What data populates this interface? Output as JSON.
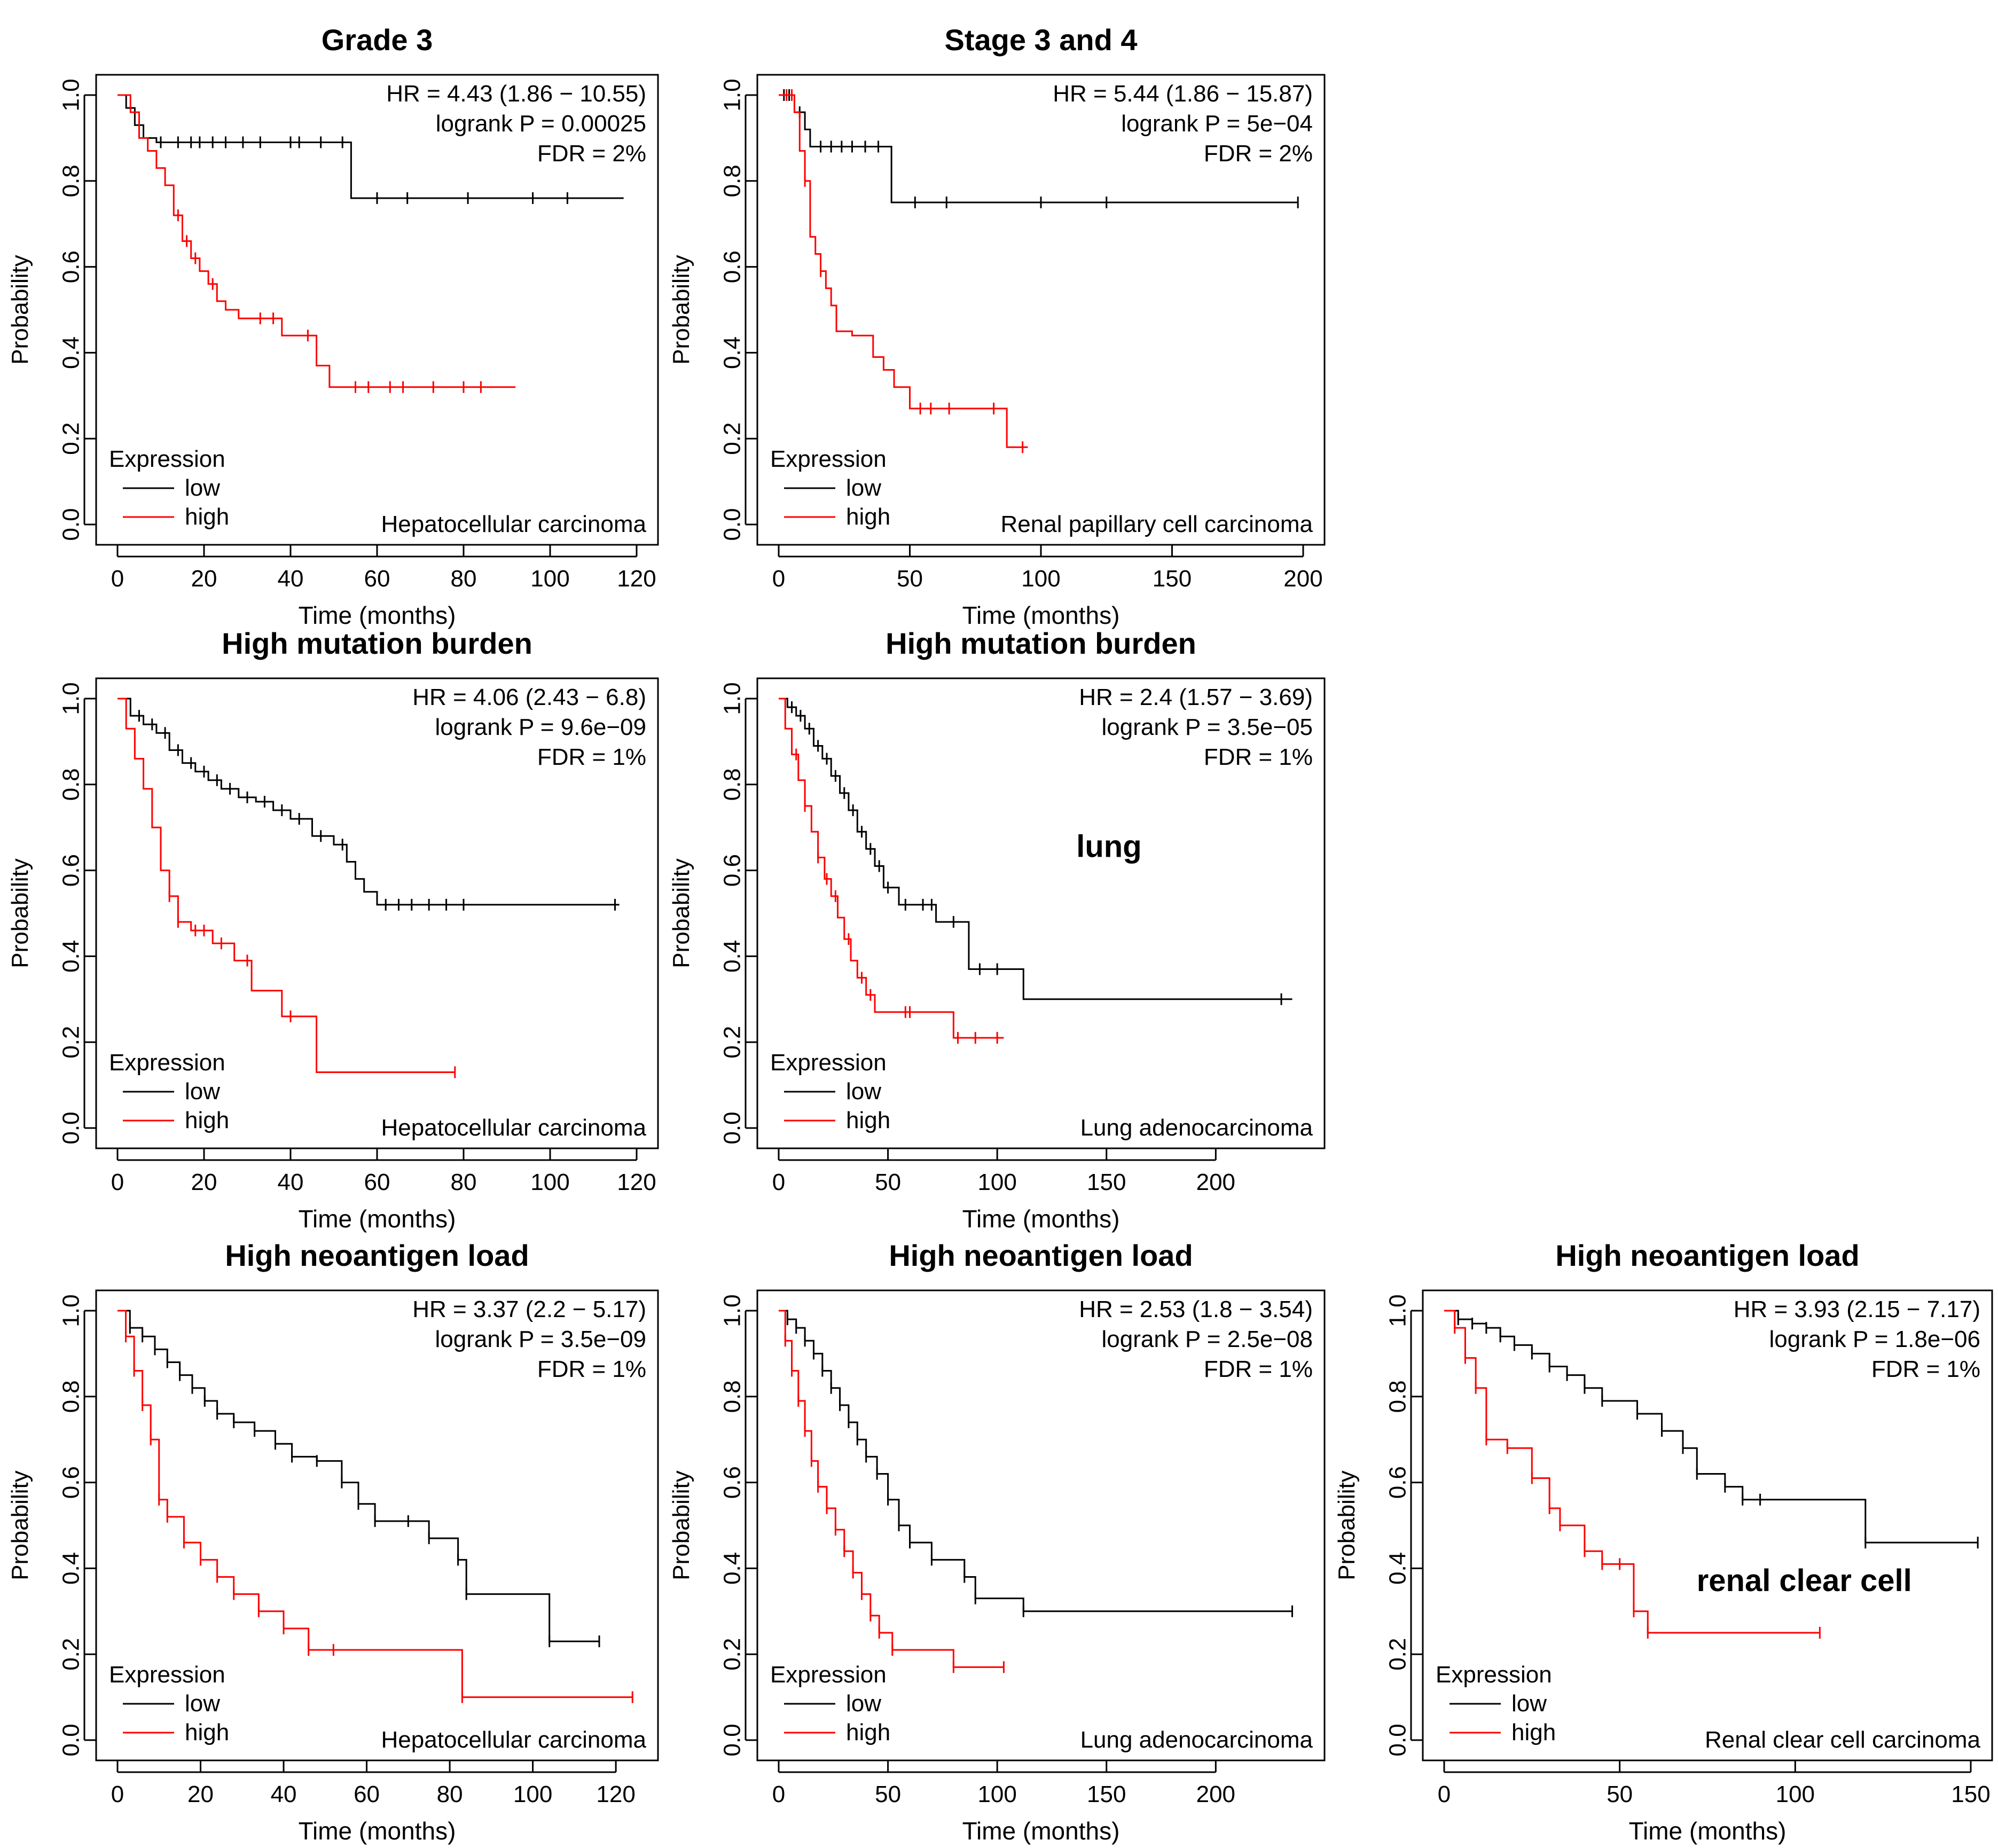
{
  "chart_data": [
    {
      "type": "line",
      "subtype": "kaplan-meier",
      "title": "Grade 3",
      "xlabel": "Time (months)",
      "ylabel": "Probability",
      "xlim": [
        0,
        120
      ],
      "ylim": [
        0,
        1
      ],
      "xticks": [
        "0",
        "20",
        "40",
        "60",
        "80",
        "100",
        "120"
      ],
      "yticks": [
        "0.0",
        "0.2",
        "0.4",
        "0.6",
        "0.8",
        "1.0"
      ],
      "stats": [
        "HR = 4.43 (1.86 − 10.55)",
        "logrank P = 0.00025",
        "FDR = 2%"
      ],
      "cancer": "Hepatocellular carcinoma",
      "annotation": "",
      "legend_title": "Expression",
      "series": [
        {
          "name": "low",
          "color": "#000000",
          "x": [
            0,
            2,
            4,
            6,
            9,
            12,
            15,
            54,
            117
          ],
          "y": [
            1.0,
            0.97,
            0.93,
            0.9,
            0.89,
            0.89,
            0.89,
            0.76,
            0.76
          ],
          "censor_x": [
            10,
            14,
            17,
            19,
            22,
            25,
            29,
            33,
            40,
            42,
            47,
            52,
            60,
            67,
            81,
            96,
            104
          ]
        },
        {
          "name": "high",
          "color": "#ff0000",
          "x": [
            0,
            3,
            5,
            7,
            9,
            11,
            13,
            15,
            17,
            19,
            21,
            23,
            25,
            28,
            31,
            38,
            46,
            49,
            51,
            92
          ],
          "y": [
            1.0,
            0.96,
            0.9,
            0.87,
            0.83,
            0.79,
            0.72,
            0.66,
            0.62,
            0.59,
            0.56,
            0.52,
            0.5,
            0.48,
            0.48,
            0.44,
            0.37,
            0.32,
            0.32,
            0.32
          ],
          "censor_x": [
            14,
            16,
            18,
            22,
            33,
            36,
            44,
            55,
            58,
            63,
            66,
            73,
            80,
            84
          ]
        }
      ]
    },
    {
      "type": "line",
      "subtype": "kaplan-meier",
      "title": "Stage 3 and 4",
      "xlabel": "Time (months)",
      "ylabel": "Probability",
      "xlim": [
        0,
        200
      ],
      "ylim": [
        0,
        1
      ],
      "xticks": [
        "0",
        "50",
        "100",
        "150",
        "200"
      ],
      "yticks": [
        "0.0",
        "0.2",
        "0.4",
        "0.6",
        "0.8",
        "1.0"
      ],
      "stats": [
        "HR = 5.44 (1.86 − 15.87)",
        "logrank P = 5e−04",
        "FDR = 2%"
      ],
      "cancer": "Renal papillary cell carcinoma",
      "annotation": "",
      "legend_title": "Expression",
      "series": [
        {
          "name": "low",
          "color": "#000000",
          "x": [
            0,
            6,
            10,
            12,
            43,
            198
          ],
          "y": [
            1.0,
            0.96,
            0.92,
            0.88,
            0.75,
            0.75
          ],
          "censor_x": [
            2,
            4,
            8,
            16,
            20,
            24,
            28,
            33,
            38,
            52,
            64,
            100,
            125,
            198
          ]
        },
        {
          "name": "high",
          "color": "#ff0000",
          "x": [
            0,
            6,
            8,
            10,
            12,
            14,
            16,
            18,
            20,
            22,
            28,
            36,
            40,
            44,
            50,
            70,
            87,
            95
          ],
          "y": [
            1.0,
            0.96,
            0.87,
            0.8,
            0.67,
            0.63,
            0.59,
            0.55,
            0.51,
            0.45,
            0.44,
            0.39,
            0.36,
            0.32,
            0.27,
            0.27,
            0.18,
            0.18
          ],
          "censor_x": [
            3,
            5,
            10,
            16,
            54,
            58,
            65,
            82,
            93
          ]
        }
      ]
    },
    {
      "type": "line",
      "subtype": "kaplan-meier",
      "title": "High mutation burden",
      "xlabel": "Time (months)",
      "ylabel": "Probability",
      "xlim": [
        0,
        120
      ],
      "ylim": [
        0,
        1
      ],
      "xticks": [
        "0",
        "20",
        "40",
        "60",
        "80",
        "100",
        "120"
      ],
      "yticks": [
        "0.0",
        "0.2",
        "0.4",
        "0.6",
        "0.8",
        "1.0"
      ],
      "stats": [
        "HR = 4.06 (2.43 − 6.8)",
        "logrank P = 9.6e−09",
        "FDR = 1%"
      ],
      "cancer": "Hepatocellular carcinoma",
      "annotation": "",
      "legend_title": "Expression",
      "series": [
        {
          "name": "low",
          "color": "#000000",
          "x": [
            0,
            3,
            6,
            9,
            12,
            15,
            18,
            21,
            24,
            28,
            32,
            36,
            40,
            45,
            50,
            53,
            55,
            57,
            60,
            116
          ],
          "y": [
            1.0,
            0.96,
            0.94,
            0.92,
            0.88,
            0.85,
            0.83,
            0.81,
            0.79,
            0.77,
            0.76,
            0.74,
            0.72,
            0.68,
            0.66,
            0.62,
            0.58,
            0.55,
            0.52,
            0.52
          ],
          "censor_x": [
            5,
            8,
            11,
            14,
            17,
            20,
            23,
            26,
            30,
            34,
            38,
            42,
            47,
            52,
            62,
            65,
            68,
            72,
            76,
            80,
            115
          ]
        },
        {
          "name": "high",
          "color": "#ff0000",
          "x": [
            0,
            2,
            4,
            6,
            8,
            10,
            12,
            14,
            17,
            22,
            27,
            31,
            38,
            42,
            46,
            78
          ],
          "y": [
            1.0,
            0.93,
            0.86,
            0.79,
            0.7,
            0.6,
            0.54,
            0.48,
            0.46,
            0.43,
            0.39,
            0.32,
            0.26,
            0.26,
            0.13,
            0.13
          ],
          "censor_x": [
            12,
            14,
            18,
            20,
            24,
            30,
            40,
            78
          ]
        }
      ]
    },
    {
      "type": "line",
      "subtype": "kaplan-meier",
      "title": "High mutation burden",
      "xlabel": "Time (months)",
      "ylabel": "Probability",
      "xlim": [
        0,
        240
      ],
      "ylim": [
        0,
        1
      ],
      "xticks": [
        "0",
        "50",
        "100",
        "150",
        "200"
      ],
      "yticks": [
        "0.0",
        "0.2",
        "0.4",
        "0.6",
        "0.8",
        "1.0"
      ],
      "stats": [
        "HR = 2.4 (1.57 − 3.69)",
        "logrank P = 3.5e−05",
        "FDR = 1%"
      ],
      "cancer": "Lung adenocarcinoma",
      "annotation": "lung",
      "legend_title": "Expression",
      "series": [
        {
          "name": "low",
          "color": "#000000",
          "x": [
            0,
            4,
            8,
            12,
            16,
            20,
            24,
            28,
            32,
            36,
            40,
            44,
            48,
            55,
            62,
            72,
            87,
            112,
            235
          ],
          "y": [
            1.0,
            0.98,
            0.96,
            0.93,
            0.89,
            0.86,
            0.82,
            0.78,
            0.74,
            0.69,
            0.65,
            0.61,
            0.56,
            0.52,
            0.52,
            0.48,
            0.37,
            0.3,
            0.3
          ],
          "censor_x": [
            6,
            10,
            14,
            18,
            22,
            26,
            30,
            34,
            38,
            42,
            46,
            50,
            58,
            66,
            70,
            80,
            92,
            100,
            230
          ]
        },
        {
          "name": "high",
          "color": "#ff0000",
          "x": [
            0,
            3,
            6,
            9,
            12,
            15,
            18,
            21,
            24,
            27,
            30,
            33,
            36,
            40,
            44,
            52,
            80,
            103
          ],
          "y": [
            1.0,
            0.93,
            0.87,
            0.81,
            0.75,
            0.69,
            0.63,
            0.58,
            0.54,
            0.49,
            0.44,
            0.39,
            0.35,
            0.31,
            0.27,
            0.27,
            0.21,
            0.21
          ],
          "censor_x": [
            8,
            12,
            18,
            22,
            26,
            32,
            38,
            42,
            58,
            60,
            82,
            90,
            100
          ]
        }
      ]
    },
    {
      "type": "line",
      "subtype": "kaplan-meier",
      "title": "High neoantigen load",
      "xlabel": "Time (months)",
      "ylabel": "Probability",
      "xlim": [
        0,
        125
      ],
      "ylim": [
        0,
        1
      ],
      "xticks": [
        "0",
        "20",
        "40",
        "60",
        "80",
        "100",
        "120"
      ],
      "yticks": [
        "0.0",
        "0.2",
        "0.4",
        "0.6",
        "0.8",
        "1.0"
      ],
      "stats": [
        "HR = 3.37 (2.2 − 5.17)",
        "logrank P = 3.5e−09",
        "FDR = 1%"
      ],
      "cancer": "Hepatocellular carcinoma",
      "annotation": "",
      "legend_title": "Expression",
      "series": [
        {
          "name": "low",
          "color": "#000000",
          "x": [
            0,
            3,
            6,
            9,
            12,
            15,
            18,
            21,
            24,
            28,
            33,
            38,
            42,
            48,
            54,
            58,
            62,
            70,
            75,
            82,
            84,
            104,
            116
          ],
          "y": [
            1.0,
            0.96,
            0.94,
            0.91,
            0.88,
            0.85,
            0.82,
            0.79,
            0.76,
            0.74,
            0.72,
            0.69,
            0.66,
            0.65,
            0.6,
            0.55,
            0.51,
            0.51,
            0.47,
            0.42,
            0.34,
            0.23,
            0.23
          ]
        },
        {
          "name": "high",
          "color": "#ff0000",
          "x": [
            0,
            2,
            4,
            6,
            8,
            10,
            12,
            16,
            20,
            24,
            28,
            34,
            40,
            46,
            52,
            83,
            124
          ],
          "y": [
            1.0,
            0.94,
            0.86,
            0.78,
            0.7,
            0.56,
            0.52,
            0.46,
            0.42,
            0.38,
            0.34,
            0.3,
            0.26,
            0.21,
            0.21,
            0.1,
            0.1
          ]
        }
      ]
    },
    {
      "type": "line",
      "subtype": "kaplan-meier",
      "title": "High neoantigen load",
      "xlabel": "Time (months)",
      "ylabel": "Probability",
      "xlim": [
        0,
        240
      ],
      "ylim": [
        0,
        1
      ],
      "xticks": [
        "0",
        "50",
        "100",
        "150",
        "200"
      ],
      "yticks": [
        "0.0",
        "0.2",
        "0.4",
        "0.6",
        "0.8",
        "1.0"
      ],
      "stats": [
        "HR = 2.53 (1.8 − 3.54)",
        "logrank P = 2.5e−08",
        "FDR = 1%"
      ],
      "cancer": "Lung adenocarcinoma",
      "annotation": "",
      "legend_title": "Expression",
      "series": [
        {
          "name": "low",
          "color": "#000000",
          "x": [
            0,
            4,
            8,
            12,
            16,
            20,
            24,
            28,
            32,
            36,
            40,
            45,
            50,
            55,
            60,
            70,
            85,
            90,
            112,
            235
          ],
          "y": [
            1.0,
            0.98,
            0.96,
            0.93,
            0.9,
            0.86,
            0.82,
            0.78,
            0.74,
            0.7,
            0.66,
            0.62,
            0.56,
            0.5,
            0.46,
            0.42,
            0.38,
            0.33,
            0.3,
            0.3
          ]
        },
        {
          "name": "high",
          "color": "#ff0000",
          "x": [
            0,
            3,
            6,
            9,
            12,
            15,
            18,
            22,
            26,
            30,
            34,
            38,
            42,
            46,
            52,
            80,
            103
          ],
          "y": [
            1.0,
            0.93,
            0.86,
            0.79,
            0.72,
            0.65,
            0.59,
            0.54,
            0.49,
            0.44,
            0.39,
            0.34,
            0.29,
            0.25,
            0.21,
            0.17,
            0.17
          ]
        }
      ]
    },
    {
      "type": "line",
      "subtype": "kaplan-meier",
      "title": "High neoantigen load",
      "xlabel": "Time (months)",
      "ylabel": "Probability",
      "xlim": [
        0,
        150
      ],
      "ylim": [
        0,
        1
      ],
      "xticks": [
        "0",
        "50",
        "100",
        "150"
      ],
      "yticks": [
        "0.0",
        "0.2",
        "0.4",
        "0.6",
        "0.8",
        "1.0"
      ],
      "stats": [
        "HR = 3.93 (2.15 − 7.17)",
        "logrank P = 1.8e−06",
        "FDR = 1%"
      ],
      "cancer": "Renal clear cell carcinoma",
      "annotation": "renal clear cell",
      "legend_title": "Expression",
      "series": [
        {
          "name": "low",
          "color": "#000000",
          "x": [
            0,
            4,
            8,
            12,
            16,
            20,
            25,
            30,
            35,
            40,
            45,
            55,
            62,
            68,
            72,
            80,
            85,
            90,
            120,
            152
          ],
          "y": [
            1.0,
            0.98,
            0.97,
            0.96,
            0.94,
            0.92,
            0.9,
            0.87,
            0.85,
            0.82,
            0.79,
            0.76,
            0.72,
            0.68,
            0.62,
            0.59,
            0.56,
            0.56,
            0.46,
            0.46
          ]
        },
        {
          "name": "high",
          "color": "#ff0000",
          "x": [
            0,
            3,
            6,
            9,
            12,
            18,
            25,
            30,
            33,
            40,
            45,
            50,
            54,
            58,
            107
          ],
          "y": [
            1.0,
            0.96,
            0.89,
            0.82,
            0.7,
            0.68,
            0.61,
            0.54,
            0.5,
            0.44,
            0.41,
            0.41,
            0.3,
            0.25,
            0.25
          ]
        }
      ]
    }
  ]
}
